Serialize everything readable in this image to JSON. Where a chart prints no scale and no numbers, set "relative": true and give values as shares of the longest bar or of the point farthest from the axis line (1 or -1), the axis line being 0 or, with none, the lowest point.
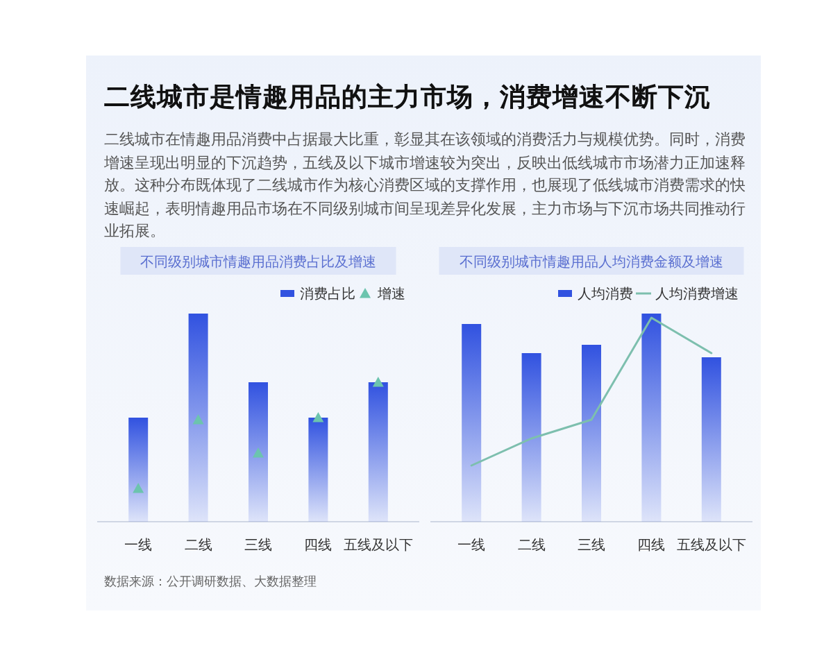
{
  "chart_data": [
    {
      "type": "other",
      "title": "二线城市是情趣用品的主力市场，消费增速不断下沉",
      "subtitle": "二线城市在情趣用品消费中占据最大比重，彰显其在该领域的消费活力与规模优势。同时，消费增速呈现出明显的下沉趋势，五线及以下城市增速较为突出，反映出低线城市市场潜力正加速释放。这种分布既体现了二线城市作为核心消费区域的支撑作用，也展现了低线城市消费需求的快速崛起，表明情趣用品市场在不同级别城市间呈现差异化发展，主力市场与下沉市场共同推动行业拓展。",
      "annotations": [
        "数据来源：公开调研数据、大数据整理"
      ]
    },
    {
      "type": "bar",
      "title": "不同级别城市情趣用品消费占比及增速",
      "relative": true,
      "legend": "top right",
      "categories": [
        "一线",
        "二线",
        "三线",
        "四线",
        "五线及以下"
      ],
      "series": [
        {
          "name": "消费占比",
          "color": "#3152e0",
          "values": [
            0.5,
            1,
            0.67,
            0.5,
            0.67
          ]
        },
        {
          "name": "增速",
          "type": "scatter",
          "marker": "triangle",
          "color": "#6cc4ae",
          "values": [
            0.16,
            0.49,
            0.33,
            0.5,
            0.67
          ]
        }
      ]
    },
    {
      "type": "bar",
      "title": "不同级别城市情趣用品人均消费金额及增速",
      "relative": true,
      "legend": "top right",
      "categories": [
        "一线",
        "二线",
        "三线",
        "四线",
        "五线及以下"
      ],
      "series": [
        {
          "name": "人均消费",
          "color": "#3152e0",
          "values": [
            0.95,
            0.81,
            0.85,
            1,
            0.79
          ]
        },
        {
          "name": "人均消费增速",
          "type": "line",
          "marker": "none",
          "color": "#7dbfae",
          "values": [
            0.27,
            0.4,
            0.49,
            0.98,
            0.81
          ]
        }
      ]
    }
  ]
}
